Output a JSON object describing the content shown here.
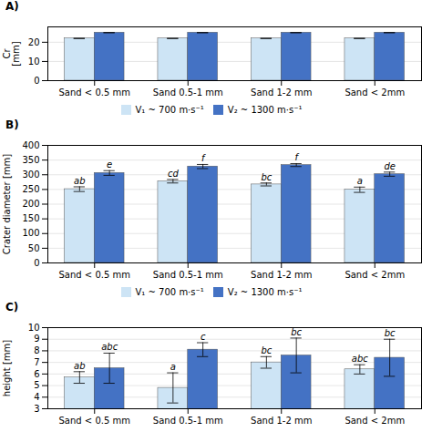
{
  "chart_data": [
    {
      "type": "bar",
      "title": "A)",
      "categories": [
        "Sand < 0.5 mm",
        "Sand 0.5-1 mm",
        "Sand 1-2 mm",
        "Sand < 2mm"
      ],
      "ylabel": "Cr\n[mm]",
      "ylim": [
        0,
        28
      ],
      "yticks": [
        0,
        10,
        20
      ],
      "grid": true,
      "legend": "bottom",
      "series": [
        {
          "name": "V₁ ~ 700 m·s⁻¹",
          "color": "#cde4f5",
          "values": [
            22,
            22,
            22,
            22
          ],
          "errors": [
            0,
            0,
            0,
            0
          ]
        },
        {
          "name": "V₂ ~ 1300 m·s⁻¹",
          "color": "#4472c4",
          "values": [
            25,
            25,
            25,
            25
          ],
          "errors": [
            0,
            0,
            0,
            0
          ]
        }
      ]
    },
    {
      "type": "bar",
      "title": "B)",
      "categories": [
        "Sand < 0.5 mm",
        "Sand 0.5-1 mm",
        "Sand 1-2 mm",
        "Sand < 2mm"
      ],
      "ylabel": "Crater diameter [mm]",
      "ylim": [
        0,
        400
      ],
      "yticks": [
        0,
        50,
        100,
        150,
        200,
        250,
        300,
        350,
        400
      ],
      "grid": true,
      "legend": "bottom",
      "series": [
        {
          "name": "V₁ ~ 700 m·s⁻¹",
          "color": "#cde4f5",
          "values": [
            251,
            278,
            267,
            249
          ],
          "errors": [
            8,
            6,
            5,
            9
          ],
          "letters": [
            "ab",
            "cd",
            "bc",
            "a"
          ]
        },
        {
          "name": "V₂ ~ 1300 m·s⁻¹",
          "color": "#4472c4",
          "values": [
            306,
            328,
            333,
            302
          ],
          "errors": [
            8,
            7,
            5,
            7
          ],
          "letters": [
            "e",
            "f",
            "f",
            "de"
          ]
        }
      ]
    },
    {
      "type": "bar",
      "title": "C)",
      "categories": [
        "Sand < 0.5 mm",
        "Sand 0.5-1 mm",
        "Sand 1-2 mm",
        "Sand < 2mm"
      ],
      "ylabel": "height [mm]",
      "ylim": [
        3,
        10
      ],
      "yticks": [
        3,
        4,
        5,
        6,
        7,
        8,
        9,
        10
      ],
      "grid": true,
      "series": [
        {
          "name": "V₁ ~ 700 m·s⁻¹",
          "color": "#cde4f5",
          "values": [
            5.7,
            4.8,
            7.0,
            6.4
          ],
          "errors": [
            0.5,
            1.3,
            0.5,
            0.4
          ],
          "letters": [
            "ab",
            "a",
            "bc",
            "abc"
          ]
        },
        {
          "name": "V₂ ~ 1300 m·s⁻¹",
          "color": "#4472c4",
          "values": [
            6.5,
            8.1,
            7.6,
            7.4
          ],
          "errors": [
            1.3,
            0.6,
            1.5,
            1.6
          ],
          "letters": [
            "abc",
            "c",
            "bc",
            "bc"
          ]
        }
      ]
    }
  ]
}
